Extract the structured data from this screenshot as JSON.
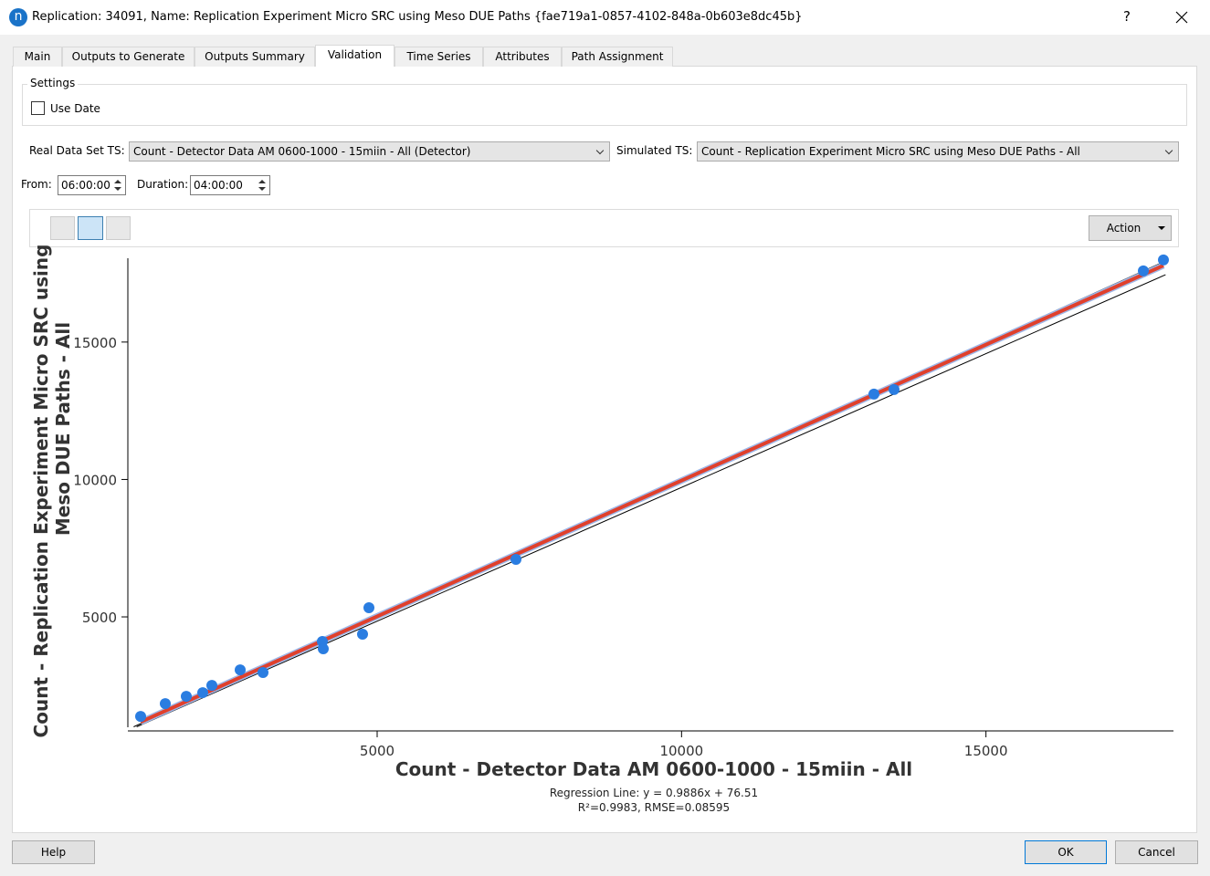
{
  "window": {
    "app_icon": "n",
    "title": "Replication: 34091, Name: Replication Experiment Micro SRC using Meso DUE Paths  {fae719a1-0857-4102-848a-0b603e8dc45b}",
    "help": "?"
  },
  "tabs": [
    "Main",
    "Outputs to Generate",
    "Outputs Summary",
    "Validation",
    "Time Series",
    "Attributes",
    "Path Assignment"
  ],
  "settings": {
    "title": "Settings",
    "use_date": "Use Date"
  },
  "series_select": {
    "real_label": "Real Data Set TS:",
    "real_value": "Count - Detector Data AM 0600-1000 - 15miin - All (Detector)",
    "sim_label": "Simulated TS:",
    "sim_value": "Count - Replication Experiment Micro SRC using Meso DUE Paths - All"
  },
  "time": {
    "from_label": "From:",
    "from_value": "06:00:00",
    "duration_label": "Duration:",
    "duration_value": "04:00:00"
  },
  "toolbar": {
    "action": "Action"
  },
  "chart_data": {
    "type": "scatter",
    "xlabel": "Count - Detector Data AM 0600-1000 - 15miin - All",
    "ylabel": [
      "Count - Replication Experiment Micro SRC using",
      "Meso DUE Paths - All"
    ],
    "annotations": [
      "Regression Line: y = 0.9886x + 76.51",
      "R²=0.9983, RMSE=0.08595"
    ],
    "xlim": [
      950,
      18050
    ],
    "ylim": [
      1050,
      18050
    ],
    "xticks": [
      5000,
      10000,
      15000
    ],
    "yticks": [
      5000,
      10000,
      15000
    ],
    "color": "#2a7de1",
    "x": [
      1115,
      1520,
      1865,
      2135,
      2285,
      2750,
      3125,
      4100,
      4115,
      4760,
      4865,
      7280,
      13160,
      13490,
      17585,
      17915
    ],
    "values": [
      1379,
      1844,
      2110,
      2243,
      2508,
      3073,
      2974,
      4103,
      3837,
      4369,
      5332,
      7093,
      13106,
      13272,
      17590,
      17989
    ],
    "lines": [
      {
        "color": "#000000",
        "x": [
          1000,
          18000
        ],
        "values": [
          1000,
          18000
        ]
      },
      {
        "color": "#000000",
        "x": [
          1050,
          17950
        ],
        "values": [
          1000,
          17450
        ]
      },
      {
        "color": "#e0402c",
        "x": [
          1115,
          17915
        ],
        "values": [
          1178,
          17787
        ]
      }
    ]
  },
  "buttons": {
    "help": "Help",
    "ok": "OK",
    "cancel": "Cancel"
  }
}
